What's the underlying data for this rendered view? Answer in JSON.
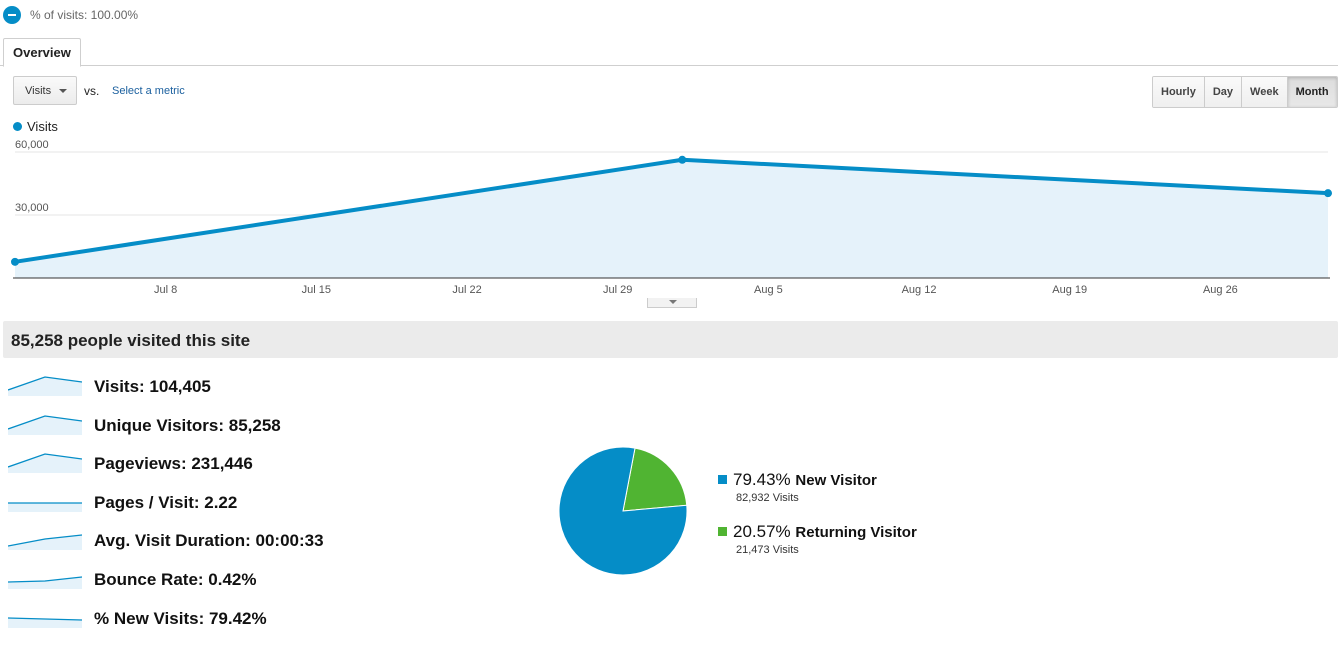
{
  "segment": {
    "label": "% of visits: 100.00%",
    "icon": "segment-pie-icon"
  },
  "tabs": [
    {
      "label": "Overview",
      "active": true
    }
  ],
  "toolbar": {
    "metric_select_value": "Visits",
    "vs_label": "vs.",
    "select_metric_link": "Select a metric",
    "time_buttons": [
      "Hourly",
      "Day",
      "Week",
      "Month"
    ],
    "active_time_button": "Month"
  },
  "colors": {
    "accent": "#058dc7",
    "accent_fill": "#e5f2fa",
    "returning": "#50b432",
    "summary_bg": "#ebebeb"
  },
  "chart_data": {
    "type": "area",
    "legend": [
      {
        "name": "Visits",
        "color": "#058dc7"
      }
    ],
    "y_ticks": [
      "60,000",
      "30,000"
    ],
    "ylim": [
      0,
      60000
    ],
    "x_tick_labels": [
      "Jul 8",
      "Jul 15",
      "Jul 22",
      "Jul 29",
      "Aug 5",
      "Aug 12",
      "Aug 19",
      "Aug 26"
    ],
    "x_tick_dates": [
      "2012-07-08",
      "2012-07-15",
      "2012-07-22",
      "2012-07-29",
      "2012-08-05",
      "2012-08-12",
      "2012-08-19",
      "2012-08-26"
    ],
    "x_range": [
      "2012-07-01",
      "2012-08-31"
    ],
    "series": [
      {
        "name": "Visits",
        "points": [
          {
            "x": "2012-07-01",
            "y": 7700
          },
          {
            "x": "2012-08-01",
            "y": 56300
          },
          {
            "x": "2012-08-31",
            "y": 40400
          }
        ]
      }
    ],
    "grid": true,
    "legend_position": "top-left"
  },
  "summary": {
    "title": "85,258 people visited this site",
    "metrics": [
      {
        "label": "Visits: 104,405",
        "spark": [
          0.3,
          0.95,
          0.7
        ]
      },
      {
        "label": "Unique Visitors: 85,258",
        "spark": [
          0.3,
          0.95,
          0.7
        ]
      },
      {
        "label": "Pageviews: 231,446",
        "spark": [
          0.3,
          0.95,
          0.7
        ]
      },
      {
        "label": "Pages / Visit: 2.22",
        "spark": [
          0.45,
          0.45,
          0.45
        ]
      },
      {
        "label": "Avg. Visit Duration: 00:00:33",
        "spark": [
          0.2,
          0.55,
          0.75
        ]
      },
      {
        "label": "Bounce Rate: 0.42%",
        "spark": [
          0.35,
          0.4,
          0.6
        ]
      },
      {
        "label": "% New Visits: 79.42%",
        "spark": [
          0.5,
          0.45,
          0.4
        ]
      }
    ]
  },
  "visitor_breakdown": {
    "slices": [
      {
        "pct_label": "79.43%",
        "name": "New Visitor",
        "visits_label": "82,932 Visits",
        "value": 79.43,
        "color": "#058dc7"
      },
      {
        "pct_label": "20.57%",
        "name": "Returning Visitor",
        "visits_label": "21,473 Visits",
        "value": 20.57,
        "color": "#50b432"
      }
    ]
  }
}
